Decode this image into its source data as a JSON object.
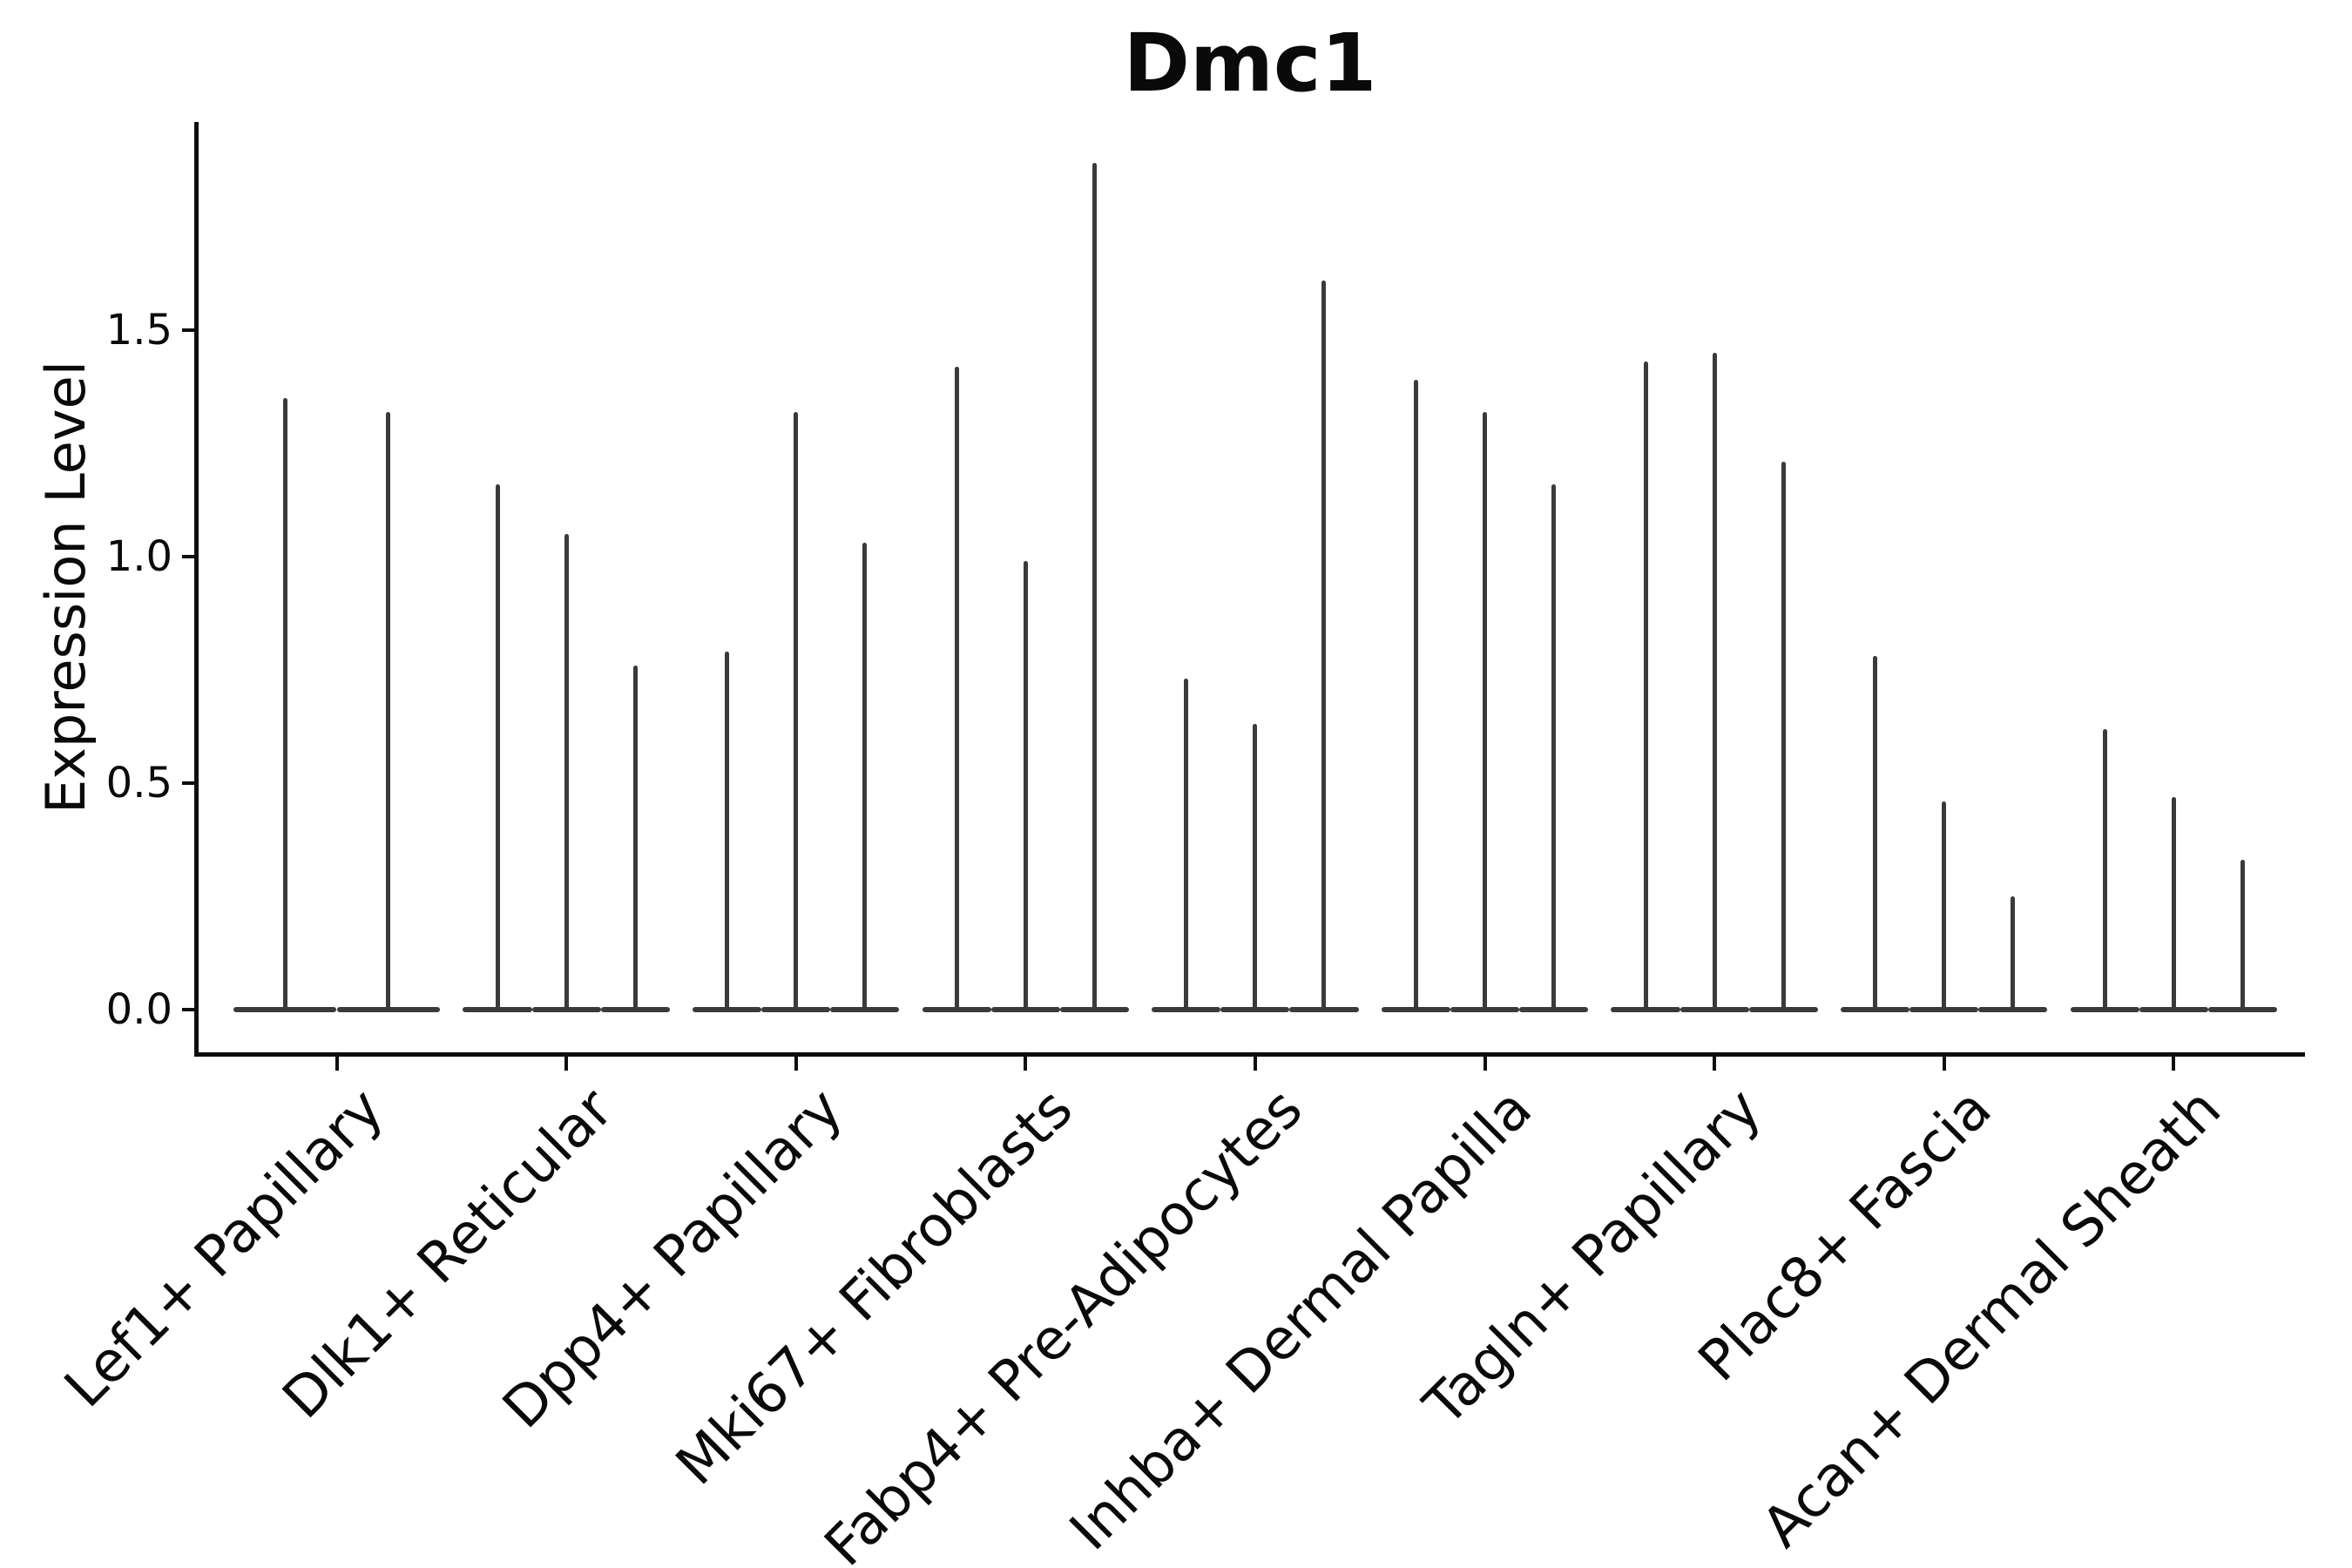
{
  "title": "Dmc1",
  "y_axis": {
    "label": "Expression Level",
    "tick_labels": [
      "0.0",
      "0.5",
      "1.0",
      "1.5"
    ]
  },
  "colors": {
    "violin": "#3a3a3a",
    "axis": "#0e0e0e",
    "text": "#0a0a0a",
    "background": "#ffffff"
  },
  "chart_data": {
    "type": "violin",
    "title": "Dmc1",
    "xlabel": "",
    "ylabel": "Expression Level",
    "y_ticks": [
      0.0,
      0.5,
      1.0,
      1.5
    ],
    "ylim": [
      -0.09,
      1.96
    ],
    "grid": false,
    "legend": "none",
    "description": "Collapsed needle-thin violin plots of Dmc1 expression per fibroblast subtype; each category contains 2-3 dodged violins (sub-group split) with a wide flat base at 0 and a thin spike reaching the maximum expression value listed in violin_peaks.",
    "categories": [
      "Lef1+ Papillary",
      "Dlk1+ Reticular",
      "Dpp4+ Papillary",
      "Mki67+ Fibroblasts",
      "Fabp4+ Pre-Adipocytes",
      "Inhba+ Dermal Papilla",
      "Tagln+ Papillary",
      "Plac8+ Fascia",
      "Acan+ Dermal Sheath"
    ],
    "groups": [
      {
        "category": "Lef1+ Papillary",
        "violin_peaks": [
          1.35,
          1.32
        ]
      },
      {
        "category": "Dlk1+ Reticular",
        "violin_peaks": [
          1.16,
          1.05,
          0.76
        ]
      },
      {
        "category": "Dpp4+ Papillary",
        "violin_peaks": [
          0.79,
          1.32,
          1.03
        ]
      },
      {
        "category": "Mki67+ Fibroblasts",
        "violin_peaks": [
          1.42,
          0.99,
          1.87
        ]
      },
      {
        "category": "Fabp4+ Pre-Adipocytes",
        "violin_peaks": [
          0.73,
          0.63,
          1.61
        ]
      },
      {
        "category": "Inhba+ Dermal Papilla",
        "violin_peaks": [
          1.39,
          1.32,
          1.16
        ]
      },
      {
        "category": "Tagln+ Papillary",
        "violin_peaks": [
          1.43,
          1.45,
          1.21
        ]
      },
      {
        "category": "Plac8+ Fascia",
        "violin_peaks": [
          0.78,
          0.46,
          0.25
        ]
      },
      {
        "category": "Acan+ Dermal Sheath",
        "violin_peaks": [
          0.62,
          0.47,
          0.33
        ]
      }
    ]
  }
}
